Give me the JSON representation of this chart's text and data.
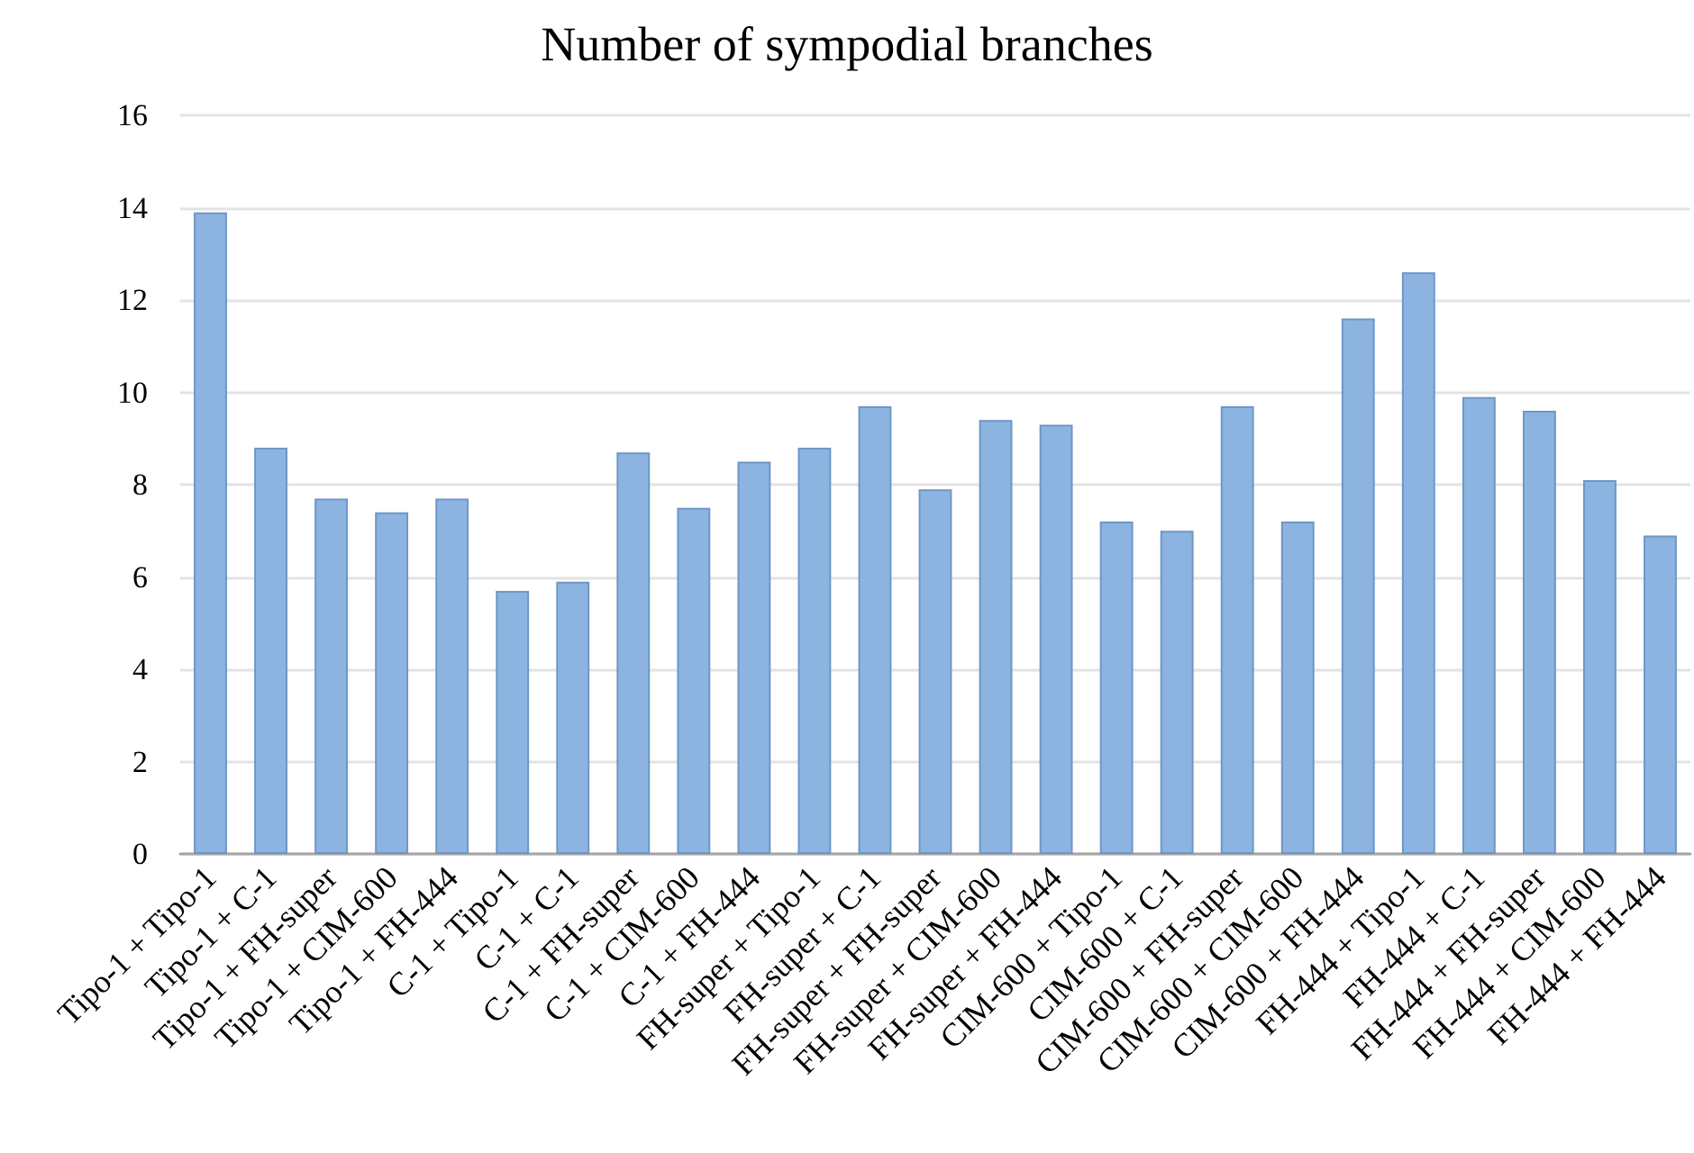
{
  "chart_data": {
    "type": "bar",
    "title": "Number of sympodial branches",
    "categories": [
      "Tipo-1 + Tipo-1",
      "Tipo-1 + C-1",
      "Tipo-1 + FH-super",
      "Tipo-1 + CIM-600",
      "Tipo-1 + FH-444",
      "C-1 + Tipo-1",
      "C-1 + C-1",
      "C-1 + FH-super",
      "C-1 + CIM-600",
      "C-1 + FH-444",
      "FH-super + Tipo-1",
      "FH-super + C-1",
      "FH-super + FH-super",
      "FH-super + CIM-600",
      "FH-super + FH-444",
      "CIM-600 + Tipo-1",
      "CIM-600 + C-1",
      "CIM-600 + FH-super",
      "CIM-600 + CIM-600",
      "CIM-600 + FH-444",
      "FH-444 + Tipo-1",
      "FH-444 + C-1",
      "FH-444 + FH-super",
      "FH-444 + CIM-600",
      "FH-444 + FH-444"
    ],
    "values": [
      13.9,
      8.8,
      7.7,
      7.4,
      7.7,
      5.7,
      5.9,
      8.7,
      7.5,
      8.5,
      8.8,
      9.7,
      7.9,
      9.4,
      9.3,
      7.2,
      7.0,
      9.7,
      7.2,
      11.6,
      12.6,
      9.9,
      9.6,
      8.1,
      6.9
    ],
    "color": "#8db4e0",
    "ylim": [
      0,
      16
    ],
    "yticks": [
      0,
      2,
      4,
      6,
      8,
      10,
      12,
      14,
      16
    ],
    "grid": true
  }
}
